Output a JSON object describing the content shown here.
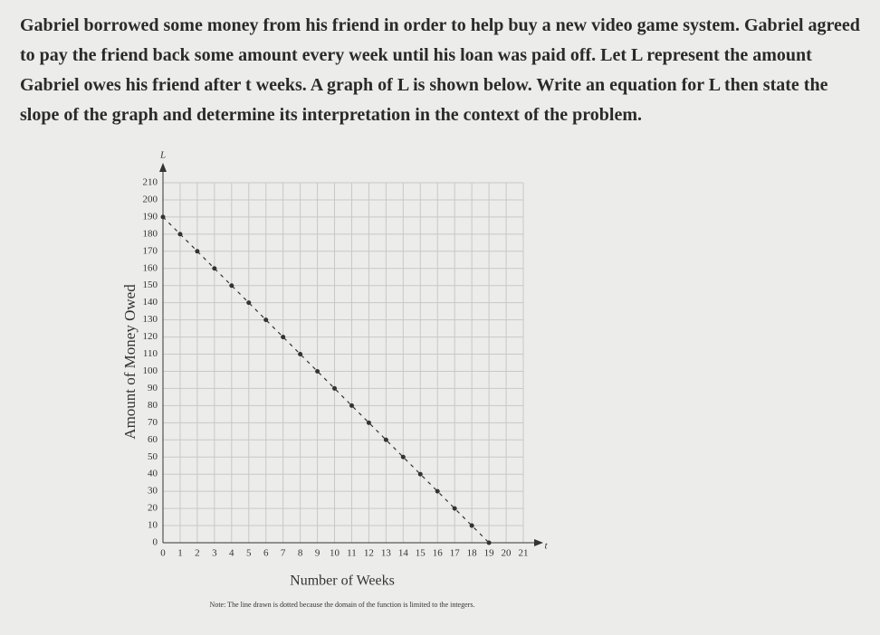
{
  "question": "Gabriel borrowed some money from his friend in order to help buy a new video game system. Gabriel agreed to pay the friend back some amount every week until his loan was paid off. Let L represent the amount Gabriel owes his friend after t weeks. A graph of L is shown below. Write an equation for L then state the slope of the graph and determine its interpretation in the context of the problem.",
  "chart_data": {
    "type": "scatter",
    "y_symbol": "L",
    "x_symbol": "t",
    "y_label": "Amount of Money Owed",
    "x_label": "Number of Weeks",
    "note": "Note: The line drawn is dotted because the domain of the function is limited to the integers.",
    "x": [
      0,
      1,
      2,
      3,
      4,
      5,
      6,
      7,
      8,
      9,
      10,
      11,
      12,
      13,
      14,
      15,
      16,
      17,
      18,
      19
    ],
    "values": [
      190,
      180,
      170,
      160,
      150,
      140,
      130,
      120,
      110,
      100,
      90,
      80,
      70,
      60,
      50,
      40,
      30,
      20,
      10,
      0
    ],
    "color": "#333333",
    "line_style": "dashed",
    "xlim": [
      0,
      21
    ],
    "xticks": [
      0,
      1,
      2,
      3,
      4,
      5,
      6,
      7,
      8,
      9,
      10,
      11,
      12,
      13,
      14,
      15,
      16,
      17,
      18,
      19,
      20,
      21
    ],
    "ylim": [
      0,
      210
    ],
    "yticks": [
      0,
      10,
      20,
      30,
      40,
      50,
      60,
      70,
      80,
      90,
      100,
      110,
      120,
      130,
      140,
      150,
      160,
      170,
      180,
      190,
      200,
      210
    ],
    "grid": true
  }
}
